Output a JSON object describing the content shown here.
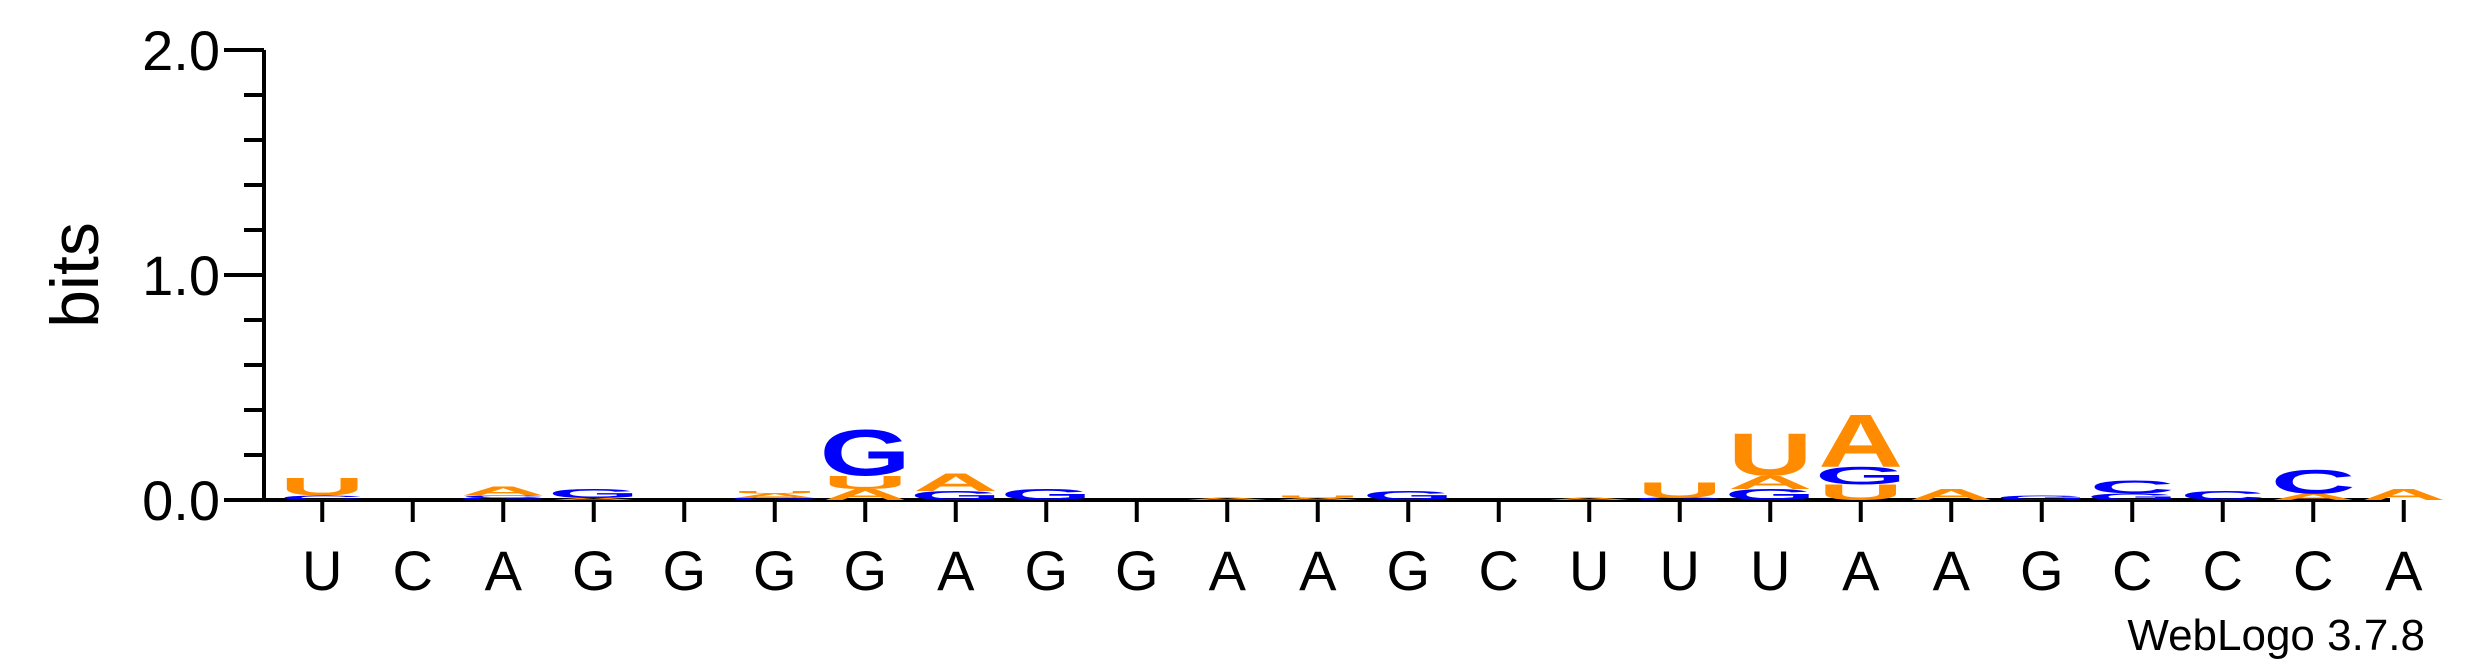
{
  "chart_data": {
    "type": "sequence-logo",
    "ylabel": "bits",
    "ylim": [
      0,
      2.0
    ],
    "yticks": [
      {
        "value": 0.0,
        "label": "0.0"
      },
      {
        "value": 1.0,
        "label": "1.0"
      },
      {
        "value": 2.0,
        "label": "2.0"
      }
    ],
    "xlabels": [
      "U",
      "C",
      "A",
      "G",
      "G",
      "G",
      "G",
      "A",
      "G",
      "G",
      "A",
      "A",
      "G",
      "C",
      "U",
      "U",
      "U",
      "A",
      "A",
      "G",
      "C",
      "C",
      "C",
      "A"
    ],
    "colors": {
      "A": "#ff8c00",
      "U": "#ff8c00",
      "G": "#0000ff",
      "C": "#0000ff"
    },
    "positions": [
      [
        {
          "letter": "C",
          "bits": 0.02
        },
        {
          "letter": "U",
          "bits": 0.08
        }
      ],
      [],
      [
        {
          "letter": "G",
          "bits": 0.01
        },
        {
          "letter": "C",
          "bits": 0.01
        },
        {
          "letter": "A",
          "bits": 0.04
        }
      ],
      [
        {
          "letter": "A",
          "bits": 0.01
        },
        {
          "letter": "G",
          "bits": 0.04
        }
      ],
      [],
      [
        {
          "letter": "G",
          "bits": 0.01
        },
        {
          "letter": "A",
          "bits": 0.02
        },
        {
          "letter": "U",
          "bits": 0.01
        }
      ],
      [
        {
          "letter": "A",
          "bits": 0.05
        },
        {
          "letter": "U",
          "bits": 0.06
        },
        {
          "letter": "G",
          "bits": 0.21
        }
      ],
      [
        {
          "letter": "G",
          "bits": 0.04
        },
        {
          "letter": "A",
          "bits": 0.08
        }
      ],
      [
        {
          "letter": "G",
          "bits": 0.05
        }
      ],
      [],
      [
        {
          "letter": "A",
          "bits": 0.01
        }
      ],
      [
        {
          "letter": "A",
          "bits": 0.01
        },
        {
          "letter": "U",
          "bits": 0.01
        }
      ],
      [
        {
          "letter": "G",
          "bits": 0.04
        }
      ],
      [],
      [
        {
          "letter": "A",
          "bits": 0.01
        }
      ],
      [
        {
          "letter": "G",
          "bits": 0.01
        },
        {
          "letter": "U",
          "bits": 0.07
        }
      ],
      [
        {
          "letter": "G",
          "bits": 0.05
        },
        {
          "letter": "A",
          "bits": 0.06
        },
        {
          "letter": "U",
          "bits": 0.19
        }
      ],
      [
        {
          "letter": "U",
          "bits": 0.07
        },
        {
          "letter": "G",
          "bits": 0.08
        },
        {
          "letter": "A",
          "bits": 0.24
        }
      ],
      [
        {
          "letter": "A",
          "bits": 0.05
        }
      ],
      [
        {
          "letter": "G",
          "bits": 0.02
        }
      ],
      [
        {
          "letter": "G",
          "bits": 0.03
        },
        {
          "letter": "C",
          "bits": 0.06
        }
      ],
      [
        {
          "letter": "C",
          "bits": 0.04
        }
      ],
      [
        {
          "letter": "A",
          "bits": 0.03
        },
        {
          "letter": "C",
          "bits": 0.11
        }
      ],
      [
        {
          "letter": "A",
          "bits": 0.05
        }
      ]
    ]
  },
  "footer": {
    "credit": "WebLogo 3.7.8"
  }
}
